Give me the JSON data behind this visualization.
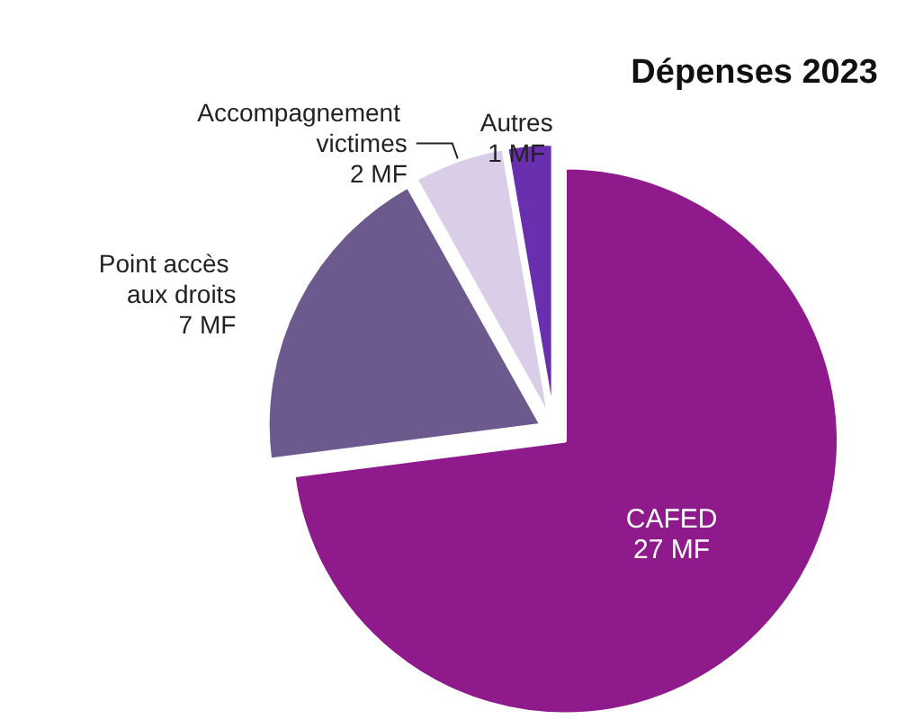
{
  "chart_data": {
    "type": "pie",
    "title": "Dépenses 2023",
    "categories": [
      "CAFED",
      "Point accès aux droits",
      "Accompagnement victimes",
      "Autres"
    ],
    "values": [
      27,
      7,
      2,
      1
    ],
    "value_labels": [
      "27 MF",
      "7 MF",
      "2 MF",
      "1 MF"
    ],
    "colors": [
      "#8e1a8c",
      "#6c5a8e",
      "#d9cde8",
      "#6a2fae"
    ],
    "legend": false
  }
}
